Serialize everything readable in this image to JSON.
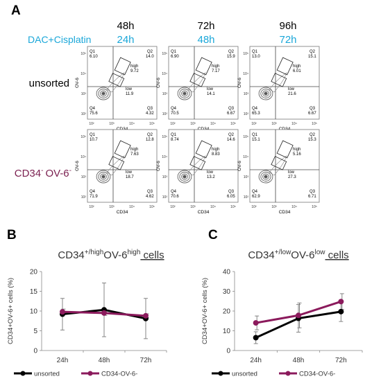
{
  "panels": {
    "a": "A",
    "b": "B",
    "c": "C"
  },
  "flow": {
    "time_top": [
      "48h",
      "72h",
      "96h"
    ],
    "time_treat": [
      "24h",
      "48h",
      "72h"
    ],
    "treatment_label": "DAC+Cisplatin",
    "row_labels": [
      "unsorted",
      "CD34",
      "OV-6"
    ],
    "row_label_sup": "-",
    "xlabel": "CD34",
    "ylabel": "OV-6",
    "gate_labels": {
      "high": "high",
      "low": "low"
    },
    "quadrant_names": [
      "Q1",
      "Q2",
      "Q3",
      "Q4"
    ],
    "tick_labels": [
      "10²",
      "10³",
      "10⁴",
      "10⁵"
    ],
    "plots": [
      {
        "row": 0,
        "col": 0,
        "q1": "6.10",
        "q2": "14.0",
        "q3": "4.32",
        "q4": "75.6",
        "high": "9.72",
        "low": "11.9"
      },
      {
        "row": 0,
        "col": 1,
        "q1": "6.90",
        "q2": "15.9",
        "q3": "6.67",
        "q4": "70.5",
        "high": "7.17",
        "low": "14.1"
      },
      {
        "row": 0,
        "col": 2,
        "q1": "13.0",
        "q2": "15.1",
        "q3": "6.67",
        "q4": "65.3",
        "high": "6.01",
        "low": "21.6"
      },
      {
        "row": 1,
        "col": 0,
        "q1": "10.7",
        "q2": "12.8",
        "q3": "4.62",
        "q4": "71.9",
        "high": "7.63",
        "low": "18.7"
      },
      {
        "row": 1,
        "col": 1,
        "q1": "8.74",
        "q2": "14.6",
        "q3": "6.05",
        "q4": "70.6",
        "high": "8.83",
        "low": "13.2"
      },
      {
        "row": 1,
        "col": 2,
        "q1": "15.1",
        "q2": "15.3",
        "q3": "6.71",
        "q4": "62.9",
        "high": "5.16",
        "low": "27.3"
      }
    ]
  },
  "colors": {
    "treatment": "#1aa7d9",
    "sorted_label": "#7a1f4f",
    "unsorted": "#000000",
    "sorted": "#8b1a5c",
    "title_underline": "#c0504d",
    "axis": "#888888"
  },
  "chart_data": [
    {
      "type": "line",
      "title_parts": {
        "base1": "CD34",
        "sup1": "+/high",
        "base2": "OV-6",
        "sup2": "high",
        "tail": " cells"
      },
      "ylabel": "CD34+OV-6+ cells (%)",
      "categories": [
        "24h",
        "48h",
        "72h"
      ],
      "ylim": [
        0,
        20
      ],
      "yticks": [
        0,
        5,
        10,
        15,
        20
      ],
      "legend": "bottom",
      "series": [
        {
          "name": "unsorted",
          "values": [
            9.2,
            10.3,
            8.1
          ],
          "err": [
            4.0,
            6.8,
            5.1
          ],
          "color": "#000000"
        },
        {
          "name": "CD34-OV-6-",
          "values": [
            9.8,
            9.5,
            8.8
          ],
          "err": [
            0.7,
            0.6,
            0.5
          ],
          "color": "#8b1a5c"
        }
      ]
    },
    {
      "type": "line",
      "title_parts": {
        "base1": "CD34",
        "sup1": "+/low",
        "base2": "OV-6",
        "sup2": "low",
        "tail": " cells"
      },
      "ylabel": "CD34+OV-6+ cells (%)",
      "categories": [
        "24h",
        "48h",
        "72h"
      ],
      "ylim": [
        0,
        40
      ],
      "yticks": [
        0,
        10,
        20,
        30,
        40
      ],
      "legend": "bottom",
      "series": [
        {
          "name": "unsorted",
          "values": [
            6.5,
            16.3,
            19.7
          ],
          "err": [
            3.0,
            7.0,
            5.0
          ],
          "color": "#000000"
        },
        {
          "name": "CD34-OV-6-",
          "values": [
            14.0,
            17.8,
            24.8
          ],
          "err": [
            3.5,
            6.3,
            4.0
          ],
          "color": "#8b1a5c"
        }
      ]
    }
  ]
}
